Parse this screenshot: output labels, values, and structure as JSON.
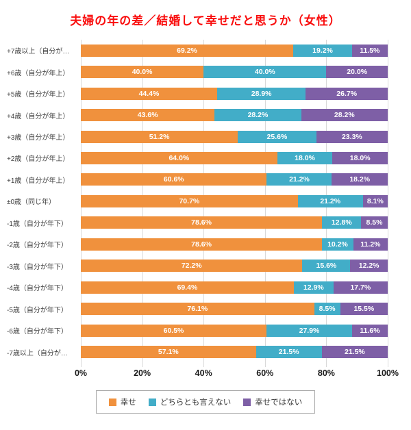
{
  "chart_data": {
    "type": "bar",
    "orientation": "horizontal",
    "stacked": true,
    "title": "夫婦の年の差／結婚して幸せだと思うか（女性）",
    "title_color": "#f90d0d",
    "categories": [
      "+7歳以上（自分が…",
      "+6歳（自分が年上）",
      "+5歳（自分が年上）",
      "+4歳（自分が年上）",
      "+3歳（自分が年上）",
      "+2歳（自分が年上）",
      "+1歳（自分が年上）",
      "±0歳（同じ年）",
      "-1歳（自分が年下）",
      "-2歳（自分が年下）",
      "-3歳（自分が年下）",
      "-4歳（自分が年下）",
      "-5歳（自分が年下）",
      "-6歳（自分が年下）",
      "-7歳以上（自分が…"
    ],
    "series": [
      {
        "name": "幸せ",
        "color": "#f0913d",
        "values": [
          69.2,
          40.0,
          44.4,
          43.6,
          51.2,
          64.0,
          60.6,
          70.7,
          78.6,
          78.6,
          72.2,
          69.4,
          76.1,
          60.5,
          57.1
        ]
      },
      {
        "name": "どちらとも言えない",
        "color": "#42adc8",
        "values": [
          19.2,
          40.0,
          28.9,
          28.2,
          25.6,
          18.0,
          21.2,
          21.2,
          12.8,
          10.2,
          15.6,
          12.9,
          8.5,
          27.9,
          21.5
        ]
      },
      {
        "name": "幸せではない",
        "color": "#7e5fa6",
        "values": [
          11.5,
          20.0,
          26.7,
          28.2,
          23.3,
          18.0,
          18.2,
          8.1,
          8.5,
          11.2,
          12.2,
          17.7,
          15.5,
          11.6,
          21.5
        ]
      }
    ],
    "value_label_format": "percent_1dp",
    "x_ticks": [
      "0%",
      "20%",
      "40%",
      "60%",
      "80%",
      "100%"
    ],
    "xlim": [
      0,
      100
    ],
    "grid": true,
    "gridline_color": "#d9d9d9",
    "legend_position": "bottom"
  }
}
